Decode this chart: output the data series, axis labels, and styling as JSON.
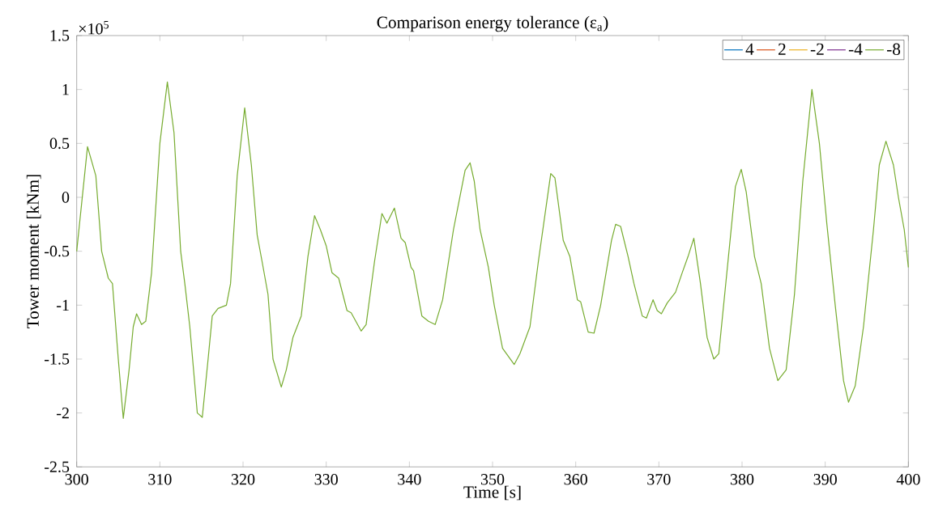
{
  "chart_data": {
    "type": "line",
    "title": "Comparison energy tolerance (ε$_{a}$)",
    "xlabel": "Time [s]",
    "ylabel": "Tower moment [kNm]",
    "annotations": [
      "×10$^{5}$"
    ],
    "x": [
      300,
      301.3,
      302.3,
      303,
      303.8,
      304.3,
      305,
      305.6,
      306.3,
      306.8,
      307.2,
      307.8,
      308.3,
      309,
      310,
      310.9,
      311.7,
      312.5,
      313,
      313.6,
      314.5,
      315.1,
      315.8,
      316.3,
      317,
      318,
      318.5,
      319.3,
      320.2,
      321,
      321.7,
      322.3,
      323,
      323.6,
      324.6,
      325.2,
      326,
      327,
      327.8,
      328.6,
      329.3,
      330,
      330.7,
      331.5,
      332.5,
      333,
      334.2,
      334.8,
      335.8,
      336.7,
      337.3,
      338.2,
      339,
      339.5,
      340.2,
      340.5,
      341.5,
      342.3,
      343.1,
      344,
      345.3,
      346.7,
      347.3,
      347.8,
      348.5,
      349.5,
      350.2,
      351.2,
      352.6,
      353.3,
      354.5,
      355.5,
      357,
      357.5,
      358.5,
      359.3,
      360.2,
      360.6,
      361.5,
      362.2,
      363,
      364.3,
      364.8,
      365.4,
      366.3,
      367,
      368,
      368.5,
      369.3,
      369.8,
      370.3,
      371,
      372,
      372.8,
      373.5,
      374.2,
      375,
      375.8,
      376.6,
      377.2,
      378.3,
      379.2,
      379.9,
      380.5,
      381.5,
      382.3,
      383.3,
      384.3,
      385.3,
      386.3,
      387.3,
      388.4,
      389.3,
      390.2,
      391.2,
      392.2,
      392.8,
      393.6,
      394.6,
      395.8,
      396.5,
      397.3,
      398.2,
      398.8,
      399.5,
      400
    ],
    "series": [
      {
        "name": "4",
        "color": "#0072bd",
        "values": [
          null,
          null,
          null,
          null,
          null,
          null,
          null,
          null,
          null,
          null,
          null,
          null,
          null,
          null,
          null,
          null,
          null,
          null,
          null,
          null,
          null,
          null,
          null,
          null,
          null,
          null,
          null,
          null,
          null,
          null,
          null,
          null,
          null,
          null,
          null,
          null,
          null,
          null,
          null,
          null,
          null,
          null,
          null,
          null,
          null,
          null,
          null,
          null,
          null,
          null,
          null,
          null,
          null,
          null,
          null,
          null,
          null,
          null,
          null,
          null,
          null,
          null,
          null,
          null,
          null,
          null,
          null,
          null,
          null,
          null,
          null,
          null,
          null,
          null,
          null,
          null,
          null,
          null,
          null,
          null,
          null,
          null,
          null,
          null,
          null,
          null,
          null,
          null,
          null,
          null,
          null,
          null,
          null,
          null,
          null,
          null,
          null,
          null,
          null,
          null,
          null,
          null,
          null,
          null,
          null,
          null,
          null,
          null,
          null,
          null,
          null,
          null,
          null,
          null,
          null,
          null,
          null,
          null,
          null,
          null,
          null,
          null,
          null,
          null,
          null,
          null
        ]
      },
      {
        "name": "2",
        "color": "#d95319",
        "values": [
          null,
          null,
          null,
          null,
          null,
          null,
          null,
          null,
          null,
          null,
          null,
          null,
          null,
          null,
          null,
          null,
          null,
          null,
          null,
          null,
          null,
          null,
          null,
          null,
          null,
          null,
          null,
          null,
          null,
          null,
          null,
          null,
          null,
          null,
          null,
          null,
          null,
          null,
          null,
          null,
          null,
          null,
          null,
          null,
          null,
          null,
          null,
          null,
          null,
          null,
          null,
          null,
          null,
          null,
          null,
          null,
          null,
          null,
          null,
          null,
          null,
          null,
          null,
          null,
          null,
          null,
          null,
          null,
          null,
          null,
          null,
          null,
          null,
          null,
          null,
          null,
          null,
          null,
          null,
          null,
          null,
          null,
          null,
          null,
          null,
          null,
          null,
          null,
          null,
          null,
          null,
          null,
          null,
          null,
          null,
          null,
          null,
          null,
          null,
          null,
          null,
          null,
          null,
          null,
          null,
          null,
          null,
          null,
          null,
          null,
          null,
          null,
          null,
          null,
          null,
          null,
          null,
          null,
          null,
          null,
          null,
          null,
          null,
          null,
          null,
          null
        ]
      },
      {
        "name": "-2",
        "color": "#edb120",
        "values": [
          null,
          null,
          null,
          null,
          null,
          null,
          null,
          null,
          null,
          null,
          null,
          null,
          null,
          null,
          null,
          null,
          null,
          null,
          null,
          null,
          null,
          null,
          null,
          null,
          null,
          null,
          null,
          null,
          null,
          null,
          null,
          null,
          null,
          null,
          null,
          null,
          null,
          null,
          null,
          null,
          null,
          null,
          null,
          null,
          null,
          null,
          null,
          null,
          null,
          null,
          null,
          null,
          null,
          null,
          null,
          null,
          null,
          null,
          null,
          null,
          null,
          null,
          null,
          null,
          null,
          null,
          null,
          null,
          null,
          null,
          null,
          null,
          null,
          null,
          null,
          null,
          null,
          null,
          null,
          null,
          null,
          null,
          null,
          null,
          null,
          null,
          null,
          null,
          null,
          null,
          null,
          null,
          null,
          null,
          null,
          null,
          null,
          null,
          null,
          null,
          null,
          null,
          null,
          null,
          null,
          null,
          null,
          null,
          null,
          null,
          null,
          null,
          null,
          null,
          null,
          null,
          null,
          null,
          null,
          null,
          null,
          null,
          null,
          null,
          null,
          null
        ]
      },
      {
        "name": "-4",
        "color": "#7e2f8e",
        "values": [
          null,
          null,
          null,
          null,
          null,
          null,
          null,
          null,
          null,
          null,
          null,
          null,
          null,
          null,
          null,
          null,
          null,
          null,
          null,
          null,
          null,
          null,
          null,
          null,
          null,
          null,
          null,
          null,
          null,
          null,
          null,
          null,
          null,
          null,
          null,
          null,
          null,
          null,
          null,
          null,
          null,
          null,
          null,
          null,
          null,
          null,
          null,
          null,
          null,
          null,
          null,
          null,
          null,
          null,
          null,
          null,
          null,
          null,
          null,
          null,
          null,
          null,
          null,
          null,
          null,
          null,
          null,
          null,
          null,
          null,
          null,
          null,
          null,
          null,
          null,
          null,
          null,
          null,
          null,
          null,
          null,
          null,
          null,
          null,
          null,
          null,
          null,
          null,
          null,
          null,
          null,
          null,
          null,
          null,
          null,
          null,
          null,
          null,
          null,
          null,
          null,
          null,
          null,
          null,
          null,
          null,
          null,
          null,
          null,
          null,
          null,
          null,
          null,
          null,
          null,
          null,
          null,
          null,
          null,
          null,
          null,
          null,
          null,
          null,
          null,
          null
        ]
      },
      {
        "name": "-8",
        "color": "#77ac30",
        "values": [
          -0.5,
          0.47,
          0.2,
          -0.5,
          -0.75,
          -0.8,
          -1.5,
          -2.05,
          -1.6,
          -1.2,
          -1.08,
          -1.18,
          -1.15,
          -0.7,
          0.5,
          1.07,
          0.6,
          -0.5,
          -0.8,
          -1.2,
          -2.0,
          -2.04,
          -1.5,
          -1.1,
          -1.03,
          -1.0,
          -0.8,
          0.2,
          0.83,
          0.3,
          -0.35,
          -0.6,
          -0.9,
          -1.5,
          -1.76,
          -1.6,
          -1.3,
          -1.1,
          -0.55,
          -0.17,
          -0.3,
          -0.45,
          -0.7,
          -0.75,
          -1.05,
          -1.07,
          -1.24,
          -1.18,
          -0.6,
          -0.15,
          -0.24,
          -0.1,
          -0.38,
          -0.42,
          -0.65,
          -0.68,
          -1.1,
          -1.15,
          -1.18,
          -0.95,
          -0.3,
          0.25,
          0.32,
          0.15,
          -0.3,
          -0.65,
          -1.0,
          -1.4,
          -1.55,
          -1.45,
          -1.2,
          -0.6,
          0.22,
          0.18,
          -0.4,
          -0.55,
          -0.95,
          -0.97,
          -1.25,
          -1.26,
          -1.0,
          -0.4,
          -0.25,
          -0.27,
          -0.55,
          -0.8,
          -1.1,
          -1.12,
          -0.95,
          -1.05,
          -1.08,
          -0.98,
          -0.88,
          -0.7,
          -0.55,
          -0.38,
          -0.8,
          -1.3,
          -1.5,
          -1.45,
          -0.6,
          0.1,
          0.26,
          0.05,
          -0.55,
          -0.8,
          -1.4,
          -1.7,
          -1.6,
          -0.9,
          0.15,
          1.0,
          0.5,
          -0.25,
          -1.0,
          -1.7,
          -1.9,
          -1.75,
          -1.2,
          -0.3,
          0.3,
          0.52,
          0.3,
          0,
          -0.3,
          -0.65
        ]
      }
    ],
    "xlim": [
      300,
      400
    ],
    "xticks": [
      300,
      310,
      320,
      330,
      340,
      350,
      360,
      370,
      380,
      390,
      400
    ],
    "ylim": [
      -2.5,
      1.5
    ],
    "yticks": [
      -2.5,
      -2,
      -1.5,
      -1,
      -0.5,
      0,
      0.5,
      1,
      1.5
    ],
    "legend": "top right",
    "grid": false
  }
}
